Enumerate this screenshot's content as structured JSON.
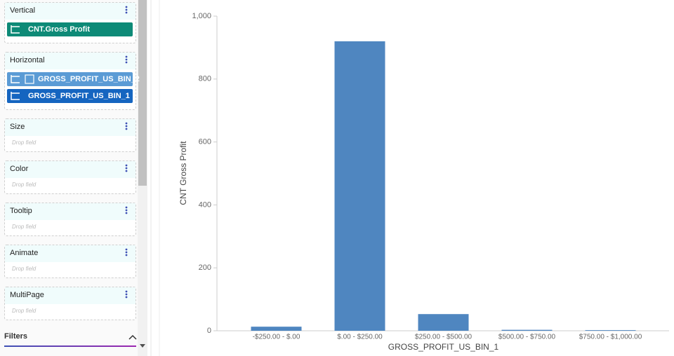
{
  "sidebar": {
    "sections": [
      {
        "title": "Vertical",
        "fields": [
          "CNT.Gross Profit"
        ]
      },
      {
        "title": "Horizontal",
        "fields": [
          "GROSS_PROFIT_US_BIN_2",
          "GROSS_PROFIT_US_BIN_1"
        ]
      },
      {
        "title": "Size",
        "placeholder": "Drop field"
      },
      {
        "title": "Color",
        "placeholder": "Drop field"
      },
      {
        "title": "Tooltip",
        "placeholder": "Drop field"
      },
      {
        "title": "Animate",
        "placeholder": "Drop field"
      },
      {
        "title": "MultiPage",
        "placeholder": "Drop field"
      }
    ],
    "filters": "Filters"
  },
  "chart_data": {
    "type": "bar",
    "categories": [
      "-$250.00 - $.00",
      "$.00 - $250.00",
      "$250.00 - $500.00",
      "$500.00 - $750.00",
      "$750.00 - $1,000.00"
    ],
    "values": [
      13,
      920,
      53,
      3,
      2
    ],
    "color": "#4f86c0",
    "x_label": "GROSS_PROFIT_US_BIN_1",
    "y_label": "CNT Gross Profit",
    "ylim": [
      0,
      1000
    ],
    "yticks": [
      0,
      200,
      400,
      600,
      800,
      {
        "value": 1000,
        "label": "1,000"
      }
    ]
  }
}
